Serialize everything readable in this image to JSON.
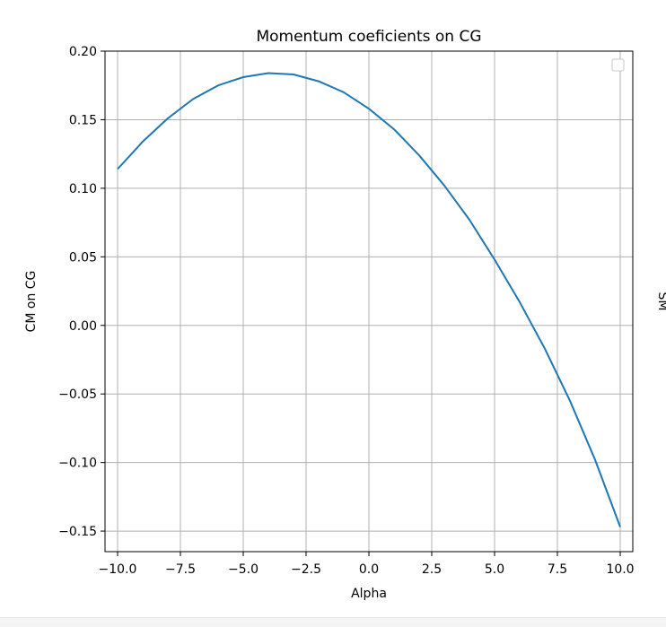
{
  "chart_data": {
    "type": "line",
    "title": "Momentum coeficients on CG",
    "xlabel": "Alpha",
    "ylabel": "CM on CG",
    "xlim": [
      -10.5,
      10.5
    ],
    "ylim": [
      -0.165,
      0.2
    ],
    "xticks": [
      -10.0,
      -7.5,
      -5.0,
      -2.5,
      0.0,
      2.5,
      5.0,
      7.5,
      10.0
    ],
    "xtick_labels": [
      "−10.0",
      "−7.5",
      "−5.0",
      "−2.5",
      "0.0",
      "2.5",
      "5.0",
      "7.5",
      "10.0"
    ],
    "yticks": [
      0.2,
      0.15,
      0.1,
      0.05,
      0.0,
      -0.05,
      -0.1,
      -0.15
    ],
    "ytick_labels": [
      "0.20",
      "0.15",
      "0.10",
      "0.05",
      "0.00",
      "−0.05",
      "−0.10",
      "−0.15"
    ],
    "grid": true,
    "legend": "top-right, empty",
    "series": [
      {
        "color": "#1f77b4",
        "x": [
          -10,
          -9,
          -8,
          -7,
          -6,
          -5,
          -4,
          -3,
          -2,
          -1,
          0,
          1,
          2,
          3,
          4,
          5,
          6,
          7,
          8,
          9,
          10
        ],
        "y": [
          0.114,
          0.134,
          0.151,
          0.165,
          0.175,
          0.181,
          0.184,
          0.183,
          0.178,
          0.17,
          0.158,
          0.143,
          0.124,
          0.102,
          0.077,
          0.048,
          0.017,
          -0.017,
          -0.055,
          -0.098,
          -0.147
        ]
      }
    ]
  },
  "side_panel": {
    "ylabel_fragment": "SM"
  }
}
